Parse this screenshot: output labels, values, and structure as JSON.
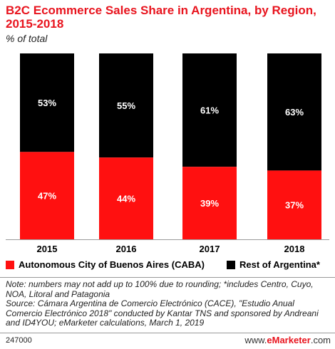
{
  "header": {
    "title": "B2C Ecommerce Sales Share in Argentina, by Region, 2015-2018",
    "subtitle": "% of total"
  },
  "chart_data": {
    "type": "bar",
    "stacked": true,
    "categories": [
      "2015",
      "2016",
      "2017",
      "2018"
    ],
    "series": [
      {
        "name": "Autonomous City of Buenos Aires (CABA)",
        "values": [
          47,
          44,
          39,
          37
        ],
        "color": "#ff1010",
        "labels": [
          "47%",
          "44%",
          "39%",
          "37%"
        ]
      },
      {
        "name": "Rest of Argentina*",
        "values": [
          53,
          55,
          61,
          63
        ],
        "color": "#000000",
        "labels": [
          "53%",
          "55%",
          "61%",
          "63%"
        ]
      }
    ],
    "ylim": [
      0,
      100
    ],
    "legend_position": "bottom",
    "grid": false
  },
  "legend": {
    "items": [
      {
        "label": "Autonomous City of Buenos Aires (CABA)",
        "color": "#ff1010"
      },
      {
        "label": "Rest of Argentina*",
        "color": "#000000"
      }
    ]
  },
  "notes": {
    "note": "Note: numbers may not add up to 100% due to rounding; *includes Centro, Cuyo, NOA, Litoral and Patagonia",
    "source": "Source: Cámara Argentina de Comercio Electrónico (CACE), \"Estudio Anual Comercio Electrónico 2018\" conducted by Kantar TNS and sponsored by Andreani and ID4YOU; eMarketer calculations, March 1, 2019"
  },
  "footer": {
    "chart_id": "247000",
    "brand_prefix": "www.",
    "brand_name": "eMarketer",
    "brand_suffix": ".com"
  }
}
